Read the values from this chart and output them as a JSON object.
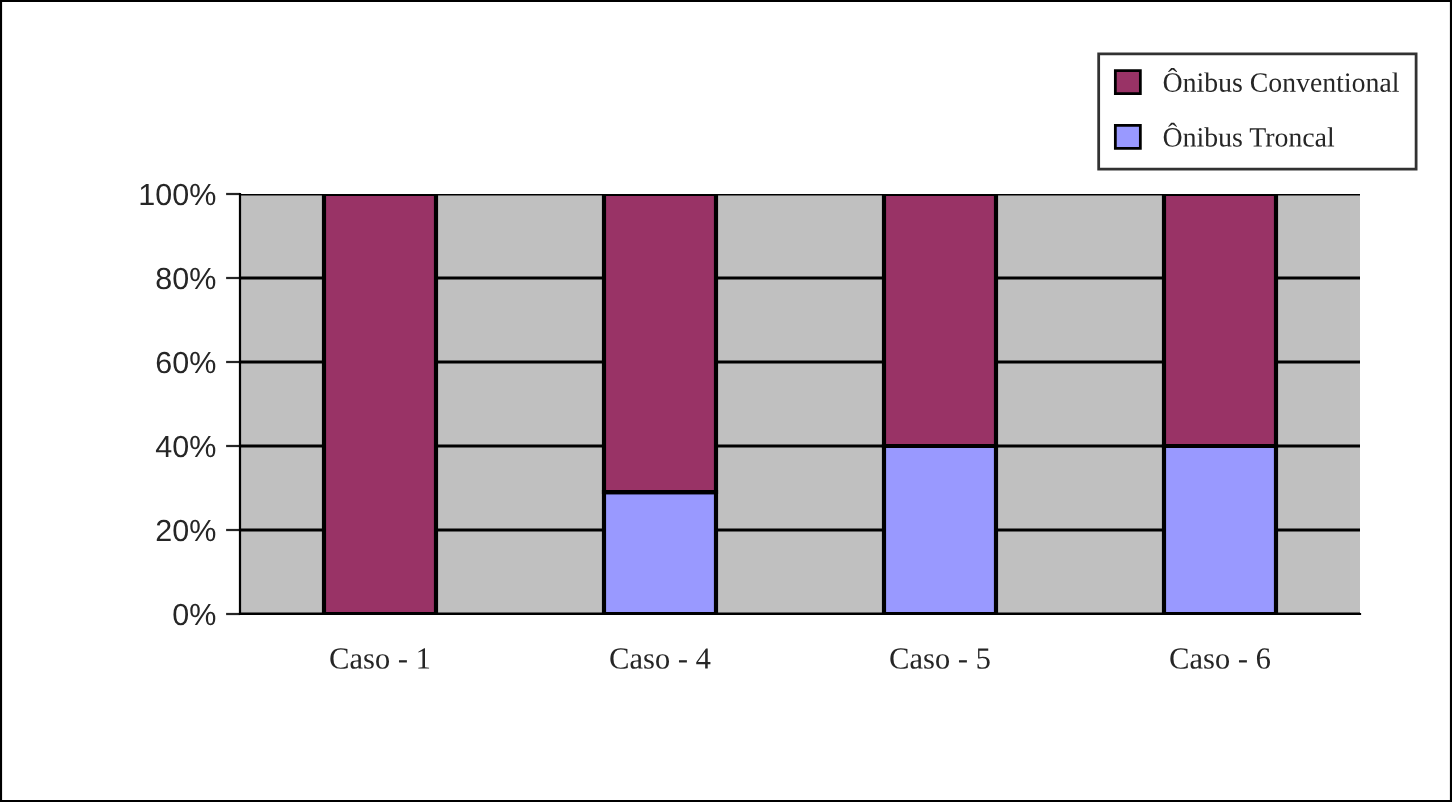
{
  "chart_data": {
    "type": "bar",
    "stacked": true,
    "categories": [
      "Caso - 1",
      "Caso - 4",
      "Caso - 5",
      "Caso - 6"
    ],
    "series": [
      {
        "name": "Ônibus Troncal",
        "color": "#9999ff",
        "values": [
          0,
          29,
          40,
          40
        ]
      },
      {
        "name": "Ônibus Conventional",
        "color": "#993366",
        "values": [
          100,
          71,
          60,
          60
        ]
      }
    ],
    "ylim": [
      0,
      100
    ],
    "yticks": [
      {
        "value": 0,
        "label": "0%"
      },
      {
        "value": 20,
        "label": "20%"
      },
      {
        "value": 40,
        "label": "40%"
      },
      {
        "value": 60,
        "label": "60%"
      },
      {
        "value": 80,
        "label": "80%"
      },
      {
        "value": 100,
        "label": "100%"
      }
    ],
    "grid": "y",
    "legend": "top right"
  }
}
